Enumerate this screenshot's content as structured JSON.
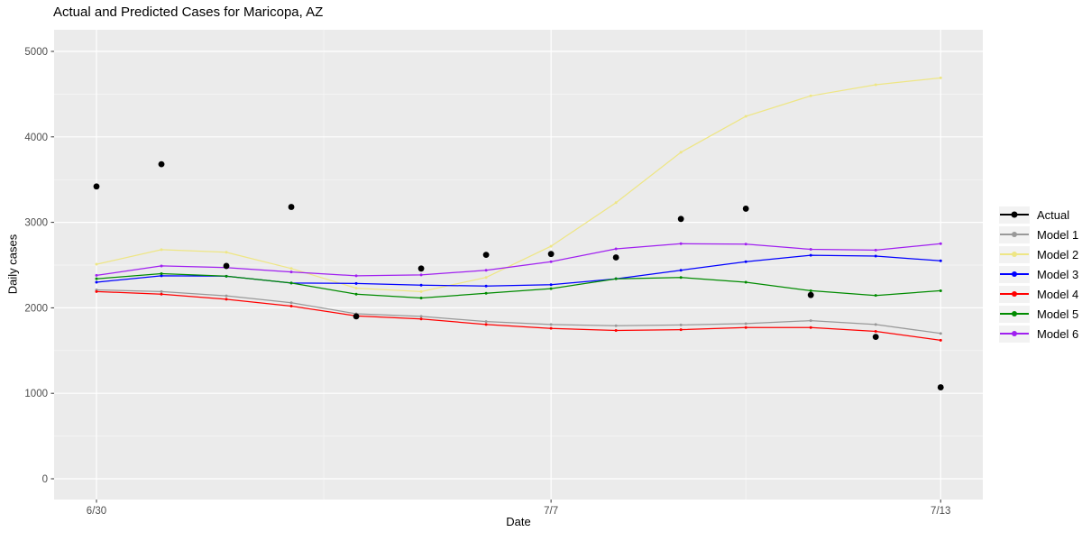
{
  "chart_data": {
    "type": "line",
    "title": "Actual and Predicted Cases for Maricopa, AZ",
    "xlabel": "Date",
    "ylabel": "Daily cases",
    "x": [
      "6/30",
      "7/1",
      "7/2",
      "7/3",
      "7/4",
      "7/5",
      "7/6",
      "7/7",
      "7/8",
      "7/9",
      "7/10",
      "7/11",
      "7/12",
      "7/13"
    ],
    "x_tick_labels": [
      "6/30",
      "7/7",
      "7/13"
    ],
    "x_tick_indices": [
      0,
      7,
      13
    ],
    "x_minor_indices": [
      3.5,
      10
    ],
    "ylim": [
      0,
      5000
    ],
    "y_ticks": [
      0,
      1000,
      2000,
      3000,
      4000,
      5000
    ],
    "y_minor_ticks": [
      500,
      1500,
      2500,
      3500,
      4500
    ],
    "legend_position": "right",
    "grid": "major and minor white gridlines on gray panel",
    "panel_bg": "#EBEBEB",
    "grid_major_color": "#FFFFFF",
    "grid_minor_color": "#F7F7F7",
    "tick_mark_color": "#333333",
    "tick_label_color": "#4D4D4D",
    "series": [
      {
        "name": "Actual",
        "color": "#000000",
        "style": "points",
        "values": [
          3420,
          3680,
          2490,
          3180,
          1900,
          2460,
          2620,
          2630,
          2590,
          3040,
          3160,
          2150,
          1660,
          1070
        ]
      },
      {
        "name": "Model 1",
        "color": "#999999",
        "style": "line",
        "values": [
          2210,
          2190,
          2140,
          2060,
          1930,
          1900,
          1840,
          1805,
          1790,
          1800,
          1815,
          1850,
          1805,
          1700
        ]
      },
      {
        "name": "Model 2",
        "color": "#EEE685",
        "style": "line",
        "values": [
          2510,
          2680,
          2650,
          2460,
          2230,
          2190,
          2355,
          2720,
          3230,
          3820,
          4240,
          4480,
          4610,
          4690
        ]
      },
      {
        "name": "Model 3",
        "color": "#0000FF",
        "style": "line",
        "values": [
          2300,
          2375,
          2370,
          2290,
          2285,
          2265,
          2255,
          2270,
          2340,
          2440,
          2540,
          2615,
          2605,
          2550
        ]
      },
      {
        "name": "Model 4",
        "color": "#FF0000",
        "style": "line",
        "values": [
          2190,
          2160,
          2100,
          2020,
          1905,
          1870,
          1805,
          1760,
          1735,
          1745,
          1770,
          1770,
          1725,
          1620
        ]
      },
      {
        "name": "Model 5",
        "color": "#008B00",
        "style": "line",
        "values": [
          2340,
          2400,
          2370,
          2290,
          2160,
          2115,
          2170,
          2225,
          2340,
          2355,
          2300,
          2200,
          2145,
          2200
        ]
      },
      {
        "name": "Model 6",
        "color": "#A020F0",
        "style": "line",
        "values": [
          2380,
          2490,
          2470,
          2420,
          2375,
          2385,
          2440,
          2540,
          2690,
          2750,
          2745,
          2685,
          2675,
          2750
        ]
      }
    ]
  }
}
